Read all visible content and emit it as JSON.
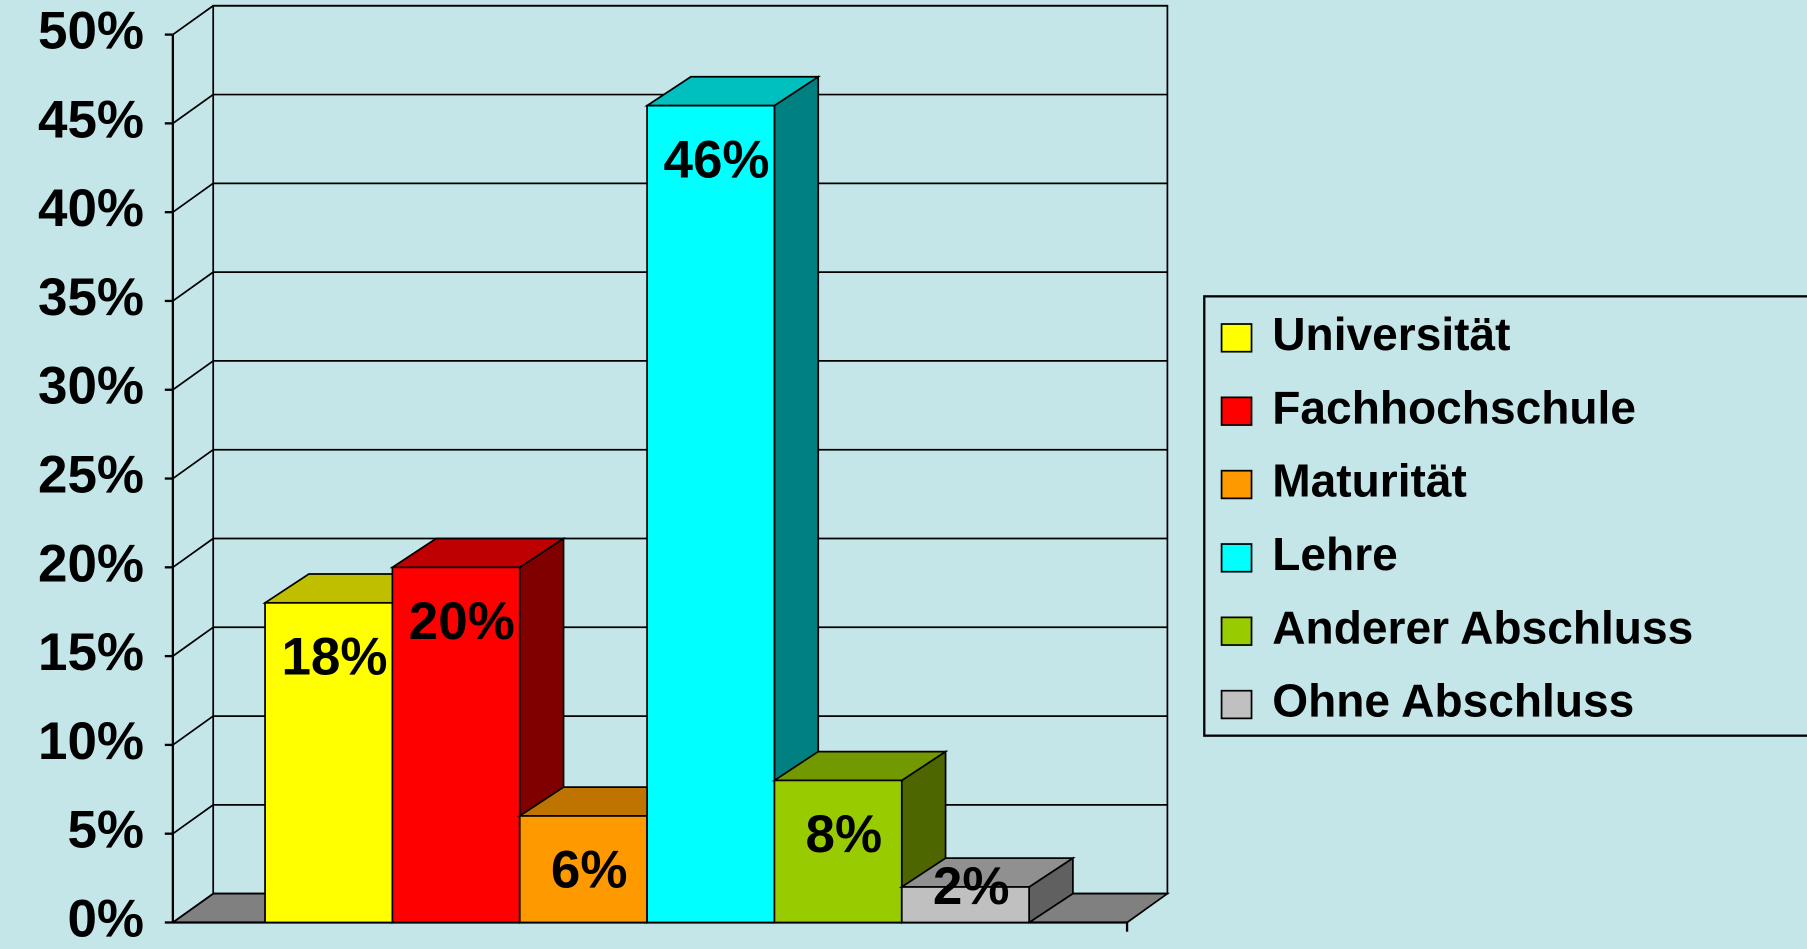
{
  "chart_data": {
    "type": "bar3d",
    "series": [
      {
        "name": "Universität",
        "color": "#ffff00",
        "values": [
          18
        ],
        "value_labels": [
          "18%"
        ]
      },
      {
        "name": "Fachhochschule",
        "color": "#ff0000",
        "values": [
          20
        ],
        "value_labels": [
          "20%"
        ]
      },
      {
        "name": "Maturität",
        "color": "#ff9900",
        "values": [
          6
        ],
        "value_labels": [
          "6%"
        ]
      },
      {
        "name": "Lehre",
        "color": "#00ffff",
        "values": [
          46
        ],
        "value_labels": [
          "46%"
        ]
      },
      {
        "name": "Anderer Abschluss",
        "color": "#99cc00",
        "values": [
          8
        ],
        "value_labels": [
          "8%"
        ]
      },
      {
        "name": "Ohne Abschluss",
        "color": "#c0c0c0",
        "values": [
          2
        ],
        "value_labels": [
          "2%"
        ]
      }
    ],
    "ylim": [
      0,
      50
    ],
    "yticks": [
      {
        "value": 0,
        "label": "0%"
      },
      {
        "value": 5,
        "label": "5%"
      },
      {
        "value": 10,
        "label": "10%"
      },
      {
        "value": 15,
        "label": "15%"
      },
      {
        "value": 20,
        "label": "20%"
      },
      {
        "value": 25,
        "label": "25%"
      },
      {
        "value": 30,
        "label": "30%"
      },
      {
        "value": 35,
        "label": "35%"
      },
      {
        "value": 40,
        "label": "40%"
      },
      {
        "value": 45,
        "label": "45%"
      },
      {
        "value": 50,
        "label": "50%"
      }
    ],
    "grid": true,
    "legend": "right"
  }
}
